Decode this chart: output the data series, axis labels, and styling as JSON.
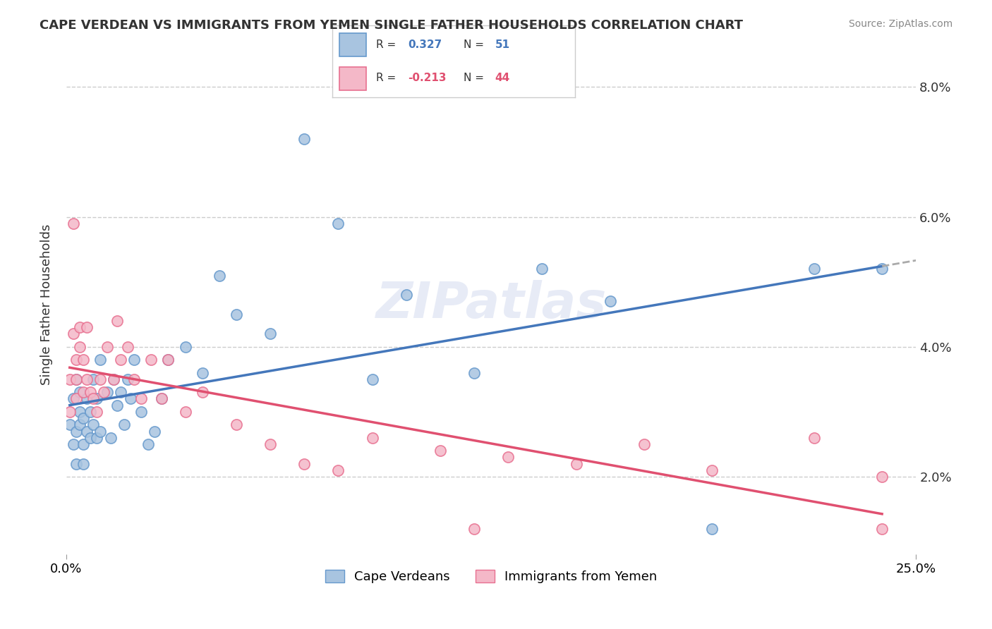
{
  "title": "CAPE VERDEAN VS IMMIGRANTS FROM YEMEN SINGLE FATHER HOUSEHOLDS CORRELATION CHART",
  "source": "Source: ZipAtlas.com",
  "ylabel": "Single Father Households",
  "xlim": [
    0.0,
    0.25
  ],
  "ylim": [
    0.008,
    0.085
  ],
  "yticks": [
    0.02,
    0.04,
    0.06,
    0.08
  ],
  "ytick_labels": [
    "2.0%",
    "4.0%",
    "6.0%",
    "8.0%"
  ],
  "xticks": [
    0.0,
    0.25
  ],
  "xtick_labels": [
    "0.0%",
    "25.0%"
  ],
  "series1_name": "Cape Verdeans",
  "series1_color": "#a8c4e0",
  "series1_edge": "#6699cc",
  "series1_R": "0.327",
  "series1_N": "51",
  "series2_name": "Immigrants from Yemen",
  "series2_color": "#f4b8c8",
  "series2_edge": "#e87090",
  "series2_R": "-0.213",
  "series2_N": "44",
  "series1_x": [
    0.001,
    0.002,
    0.002,
    0.003,
    0.003,
    0.003,
    0.004,
    0.004,
    0.004,
    0.005,
    0.005,
    0.005,
    0.006,
    0.006,
    0.007,
    0.007,
    0.008,
    0.008,
    0.009,
    0.009,
    0.01,
    0.01,
    0.012,
    0.013,
    0.014,
    0.015,
    0.016,
    0.017,
    0.018,
    0.019,
    0.02,
    0.022,
    0.024,
    0.026,
    0.028,
    0.03,
    0.035,
    0.04,
    0.045,
    0.05,
    0.06,
    0.07,
    0.08,
    0.09,
    0.1,
    0.12,
    0.14,
    0.16,
    0.19,
    0.22,
    0.24
  ],
  "series1_y": [
    0.028,
    0.032,
    0.025,
    0.035,
    0.027,
    0.022,
    0.033,
    0.028,
    0.03,
    0.029,
    0.025,
    0.022,
    0.027,
    0.032,
    0.026,
    0.03,
    0.035,
    0.028,
    0.032,
    0.026,
    0.038,
    0.027,
    0.033,
    0.026,
    0.035,
    0.031,
    0.033,
    0.028,
    0.035,
    0.032,
    0.038,
    0.03,
    0.025,
    0.027,
    0.032,
    0.038,
    0.04,
    0.036,
    0.051,
    0.045,
    0.042,
    0.072,
    0.059,
    0.035,
    0.048,
    0.036,
    0.052,
    0.047,
    0.012,
    0.052,
    0.052
  ],
  "series2_x": [
    0.001,
    0.001,
    0.002,
    0.002,
    0.003,
    0.003,
    0.003,
    0.004,
    0.004,
    0.005,
    0.005,
    0.006,
    0.006,
    0.007,
    0.008,
    0.009,
    0.01,
    0.011,
    0.012,
    0.014,
    0.015,
    0.016,
    0.018,
    0.02,
    0.022,
    0.025,
    0.028,
    0.03,
    0.035,
    0.04,
    0.05,
    0.06,
    0.07,
    0.08,
    0.09,
    0.11,
    0.13,
    0.15,
    0.17,
    0.19,
    0.22,
    0.24,
    0.24,
    0.12
  ],
  "series2_y": [
    0.03,
    0.035,
    0.042,
    0.059,
    0.038,
    0.035,
    0.032,
    0.04,
    0.043,
    0.038,
    0.033,
    0.043,
    0.035,
    0.033,
    0.032,
    0.03,
    0.035,
    0.033,
    0.04,
    0.035,
    0.044,
    0.038,
    0.04,
    0.035,
    0.032,
    0.038,
    0.032,
    0.038,
    0.03,
    0.033,
    0.028,
    0.025,
    0.022,
    0.021,
    0.026,
    0.024,
    0.023,
    0.022,
    0.025,
    0.021,
    0.026,
    0.02,
    0.012,
    0.012
  ],
  "background_color": "#ffffff",
  "grid_color": "#cccccc",
  "watermark": "ZIPatlas",
  "reg_line1_color": "#4477bb",
  "reg_line2_color": "#e05070",
  "dashed_ext_color": "#aaaaaa"
}
